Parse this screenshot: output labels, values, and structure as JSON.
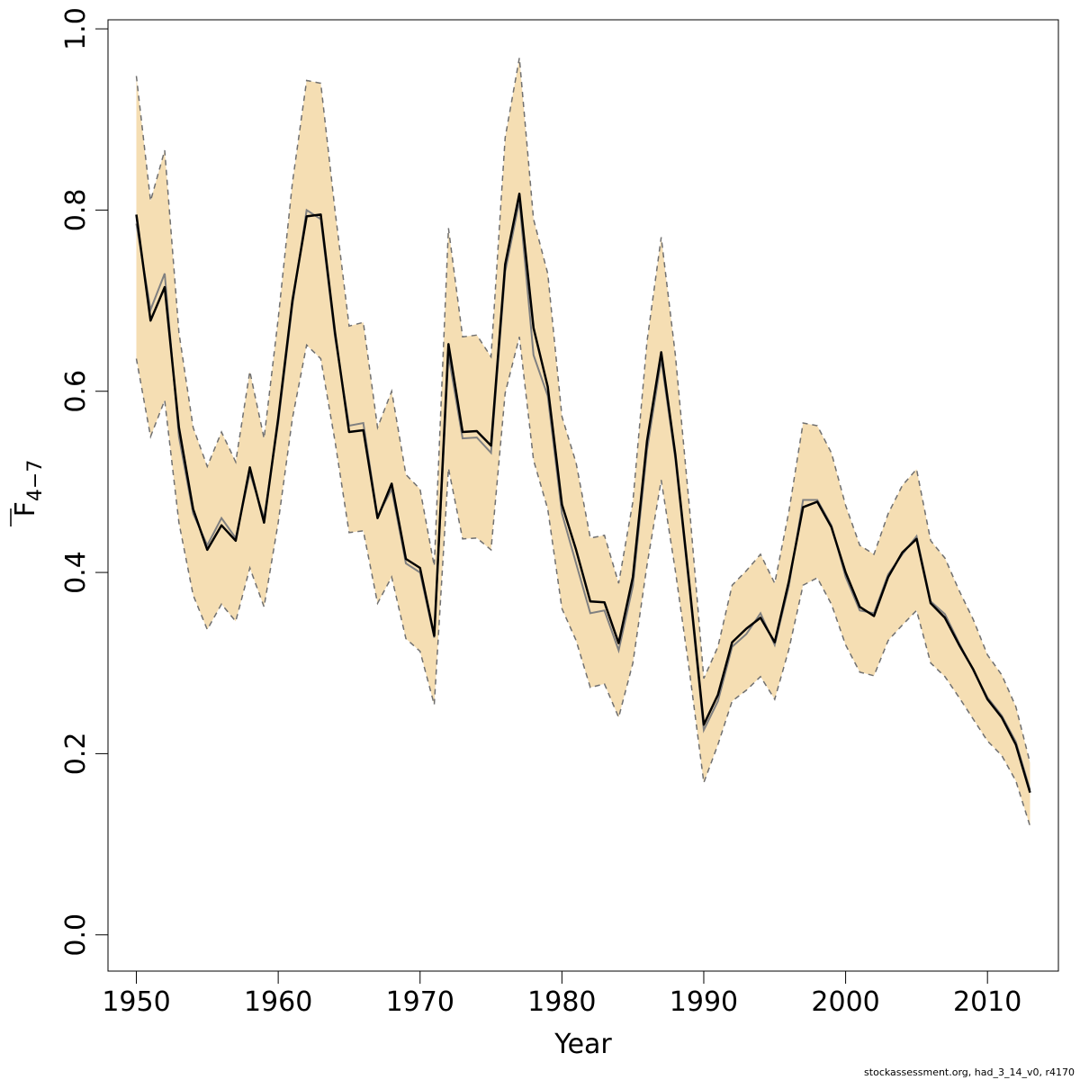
{
  "chart_data": {
    "type": "line",
    "xlabel": "Year",
    "ylabel": "F",
    "ylabel_subscript": "4−7",
    "xlim": [
      1948,
      2015
    ],
    "ylim": [
      -0.04,
      1.01
    ],
    "x_ticks": [
      1950,
      1960,
      1970,
      1980,
      1990,
      2000,
      2010
    ],
    "y_ticks": [
      0.0,
      0.2,
      0.4,
      0.6,
      0.8,
      1.0
    ],
    "y_tick_labels": [
      "0.0",
      "0.2",
      "0.4",
      "0.6",
      "0.8",
      "1.0"
    ],
    "grid": false,
    "colors": {
      "band": "#f5deb3",
      "estimate": "#000000",
      "previous": "#808080",
      "bounds": "#707070"
    },
    "x": [
      1950,
      1951,
      1952,
      1953,
      1954,
      1955,
      1956,
      1957,
      1958,
      1959,
      1960,
      1961,
      1962,
      1963,
      1964,
      1965,
      1966,
      1967,
      1968,
      1969,
      1970,
      1971,
      1972,
      1973,
      1974,
      1975,
      1976,
      1977,
      1978,
      1979,
      1980,
      1981,
      1982,
      1983,
      1984,
      1985,
      1986,
      1987,
      1988,
      1989,
      1990,
      1991,
      1992,
      1993,
      1994,
      1995,
      1996,
      1997,
      1998,
      1999,
      2000,
      2001,
      2002,
      2003,
      2004,
      2005,
      2006,
      2007,
      2008,
      2009,
      2010,
      2011,
      2012,
      2013
    ],
    "series": [
      {
        "role": "estimate",
        "values": [
          0.795,
          0.678,
          0.715,
          0.56,
          0.47,
          0.425,
          0.452,
          0.435,
          0.516,
          0.455,
          0.57,
          0.7,
          0.793,
          0.795,
          0.665,
          0.555,
          0.557,
          0.46,
          0.498,
          0.415,
          0.405,
          0.33,
          0.652,
          0.555,
          0.556,
          0.54,
          0.74,
          0.818,
          0.67,
          0.605,
          0.475,
          0.425,
          0.368,
          0.367,
          0.322,
          0.395,
          0.545,
          0.643,
          0.53,
          0.385,
          0.232,
          0.265,
          0.323,
          0.338,
          0.35,
          0.323,
          0.39,
          0.472,
          0.478,
          0.45,
          0.4,
          0.362,
          0.352,
          0.395,
          0.422,
          0.437,
          0.366,
          0.35,
          0.32,
          0.293,
          0.26,
          0.24,
          0.21,
          0.157
        ]
      },
      {
        "role": "previous",
        "values": [
          0.785,
          0.69,
          0.73,
          0.55,
          0.465,
          0.43,
          0.46,
          0.438,
          0.51,
          0.46,
          0.565,
          0.695,
          0.8,
          0.79,
          0.66,
          0.562,
          0.565,
          0.462,
          0.492,
          0.41,
          0.4,
          0.328,
          0.64,
          0.548,
          0.549,
          0.532,
          0.732,
          0.81,
          0.64,
          0.595,
          0.465,
          0.41,
          0.355,
          0.358,
          0.314,
          0.385,
          0.535,
          0.635,
          0.525,
          0.38,
          0.226,
          0.258,
          0.318,
          0.332,
          0.355,
          0.32,
          0.385,
          0.48,
          0.48,
          0.452,
          0.395,
          0.358,
          0.355,
          0.398,
          0.42,
          0.44,
          0.368,
          0.354,
          0.322,
          0.292,
          0.262,
          0.242,
          0.213,
          0.16
        ]
      },
      {
        "role": "upper",
        "values": [
          0.948,
          0.81,
          0.866,
          0.665,
          0.56,
          0.517,
          0.555,
          0.522,
          0.622,
          0.548,
          0.68,
          0.83,
          0.943,
          0.94,
          0.8,
          0.672,
          0.676,
          0.56,
          0.6,
          0.508,
          0.492,
          0.407,
          0.78,
          0.66,
          0.662,
          0.638,
          0.88,
          0.968,
          0.79,
          0.73,
          0.572,
          0.521,
          0.438,
          0.441,
          0.388,
          0.478,
          0.655,
          0.77,
          0.64,
          0.47,
          0.283,
          0.318,
          0.386,
          0.402,
          0.42,
          0.388,
          0.467,
          0.565,
          0.562,
          0.532,
          0.474,
          0.43,
          0.42,
          0.465,
          0.496,
          0.514,
          0.435,
          0.416,
          0.38,
          0.348,
          0.309,
          0.287,
          0.252,
          0.19
        ]
      },
      {
        "role": "lower",
        "values": [
          0.636,
          0.55,
          0.59,
          0.455,
          0.375,
          0.337,
          0.365,
          0.346,
          0.405,
          0.362,
          0.455,
          0.57,
          0.651,
          0.636,
          0.545,
          0.444,
          0.446,
          0.366,
          0.395,
          0.327,
          0.313,
          0.254,
          0.515,
          0.437,
          0.438,
          0.425,
          0.598,
          0.66,
          0.524,
          0.47,
          0.36,
          0.325,
          0.273,
          0.277,
          0.24,
          0.3,
          0.408,
          0.502,
          0.402,
          0.29,
          0.168,
          0.21,
          0.258,
          0.27,
          0.285,
          0.26,
          0.315,
          0.386,
          0.394,
          0.365,
          0.32,
          0.29,
          0.286,
          0.325,
          0.342,
          0.358,
          0.3,
          0.285,
          0.262,
          0.238,
          0.214,
          0.198,
          0.17,
          0.12
        ]
      }
    ]
  },
  "footer": {
    "text": "stockassessment.org, had_3_14_v0, r4170"
  }
}
